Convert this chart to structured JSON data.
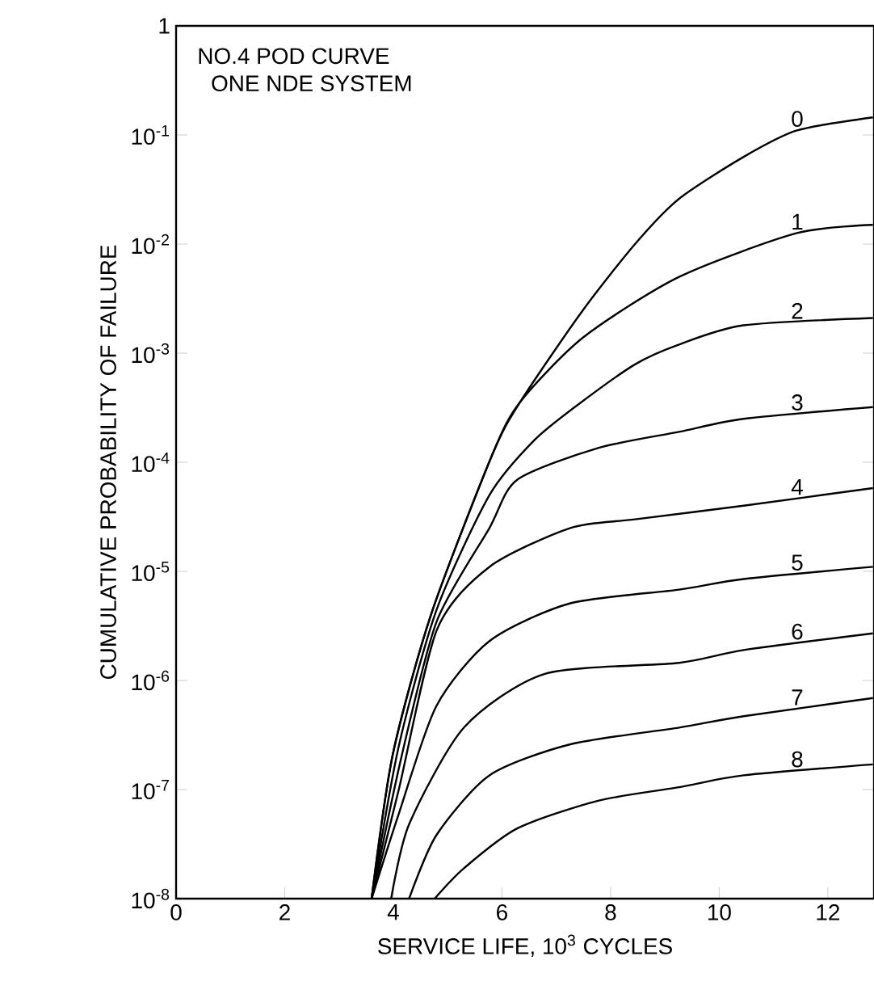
{
  "chart_data": {
    "type": "line",
    "title": "NO.4  POD CURVE",
    "subtitle": "ONE NDE SYSTEM",
    "xlabel": "SERVICE LIFE, 10$^{3}$ CYCLES",
    "ylabel": "CUMULATIVE PROBABILITY OF FAILURE",
    "log": "y",
    "grid": false,
    "marker": "none",
    "line_style": "solid",
    "xlim": [
      0,
      12.85
    ],
    "ylim": [
      1e-08,
      1
    ],
    "xticks": [
      0,
      2,
      4,
      6,
      8,
      10,
      12
    ],
    "yticks": [
      {
        "value": 1e-08,
        "label": "10$^{-8}$"
      },
      {
        "value": 1e-07,
        "label": "10$^{-7}$"
      },
      {
        "value": 1e-06,
        "label": "10$^{-6}$"
      },
      {
        "value": 1e-05,
        "label": "10$^{-5}$"
      },
      {
        "value": 0.0001,
        "label": "10$^{-4}$"
      },
      {
        "value": 0.001,
        "label": "10$^{-3}$"
      },
      {
        "value": 0.01,
        "label": "10$^{-2}$"
      },
      {
        "value": 0.1,
        "label": "10$^{-1}$"
      },
      1
    ],
    "series": [
      {
        "name": "0",
        "color": "#000000",
        "x": [
          3.6,
          3.99,
          4.7,
          5.83,
          6.34,
          7.47,
          8.45,
          9.26,
          10.45,
          11.43,
          12.83
        ],
        "values": [
          1e-08,
          2.1e-07,
          4.1e-06,
          0.00012,
          0.00036,
          0.0024,
          0.01,
          0.026,
          0.063,
          0.11,
          0.145
        ]
      },
      {
        "name": "1",
        "color": "#000000",
        "x": [
          3.6,
          3.99,
          4.7,
          5.83,
          6.34,
          7.5,
          9.26,
          11.43,
          12.83
        ],
        "values": [
          1e-08,
          2.1e-07,
          4.1e-06,
          0.00012,
          0.00036,
          0.0014,
          0.005,
          0.0126,
          0.015
        ]
      },
      {
        "name": "2",
        "color": "#000000",
        "x": [
          3.6,
          4.1,
          4.8,
          5.77,
          6.6,
          7.41,
          8.45,
          9.26,
          10.45,
          12.83
        ],
        "values": [
          1e-08,
          2.5e-07,
          4.5e-06,
          5e-05,
          0.00016,
          0.00034,
          0.00079,
          0.0012,
          0.0018,
          0.0021
        ]
      },
      {
        "name": "3",
        "color": "#000000",
        "x": [
          3.6,
          4.15,
          4.8,
          5.77,
          6.28,
          7.77,
          9.26,
          10.45,
          12.83
        ],
        "values": [
          1e-08,
          2e-07,
          3.5e-06,
          2.5e-05,
          6.9e-05,
          0.000135,
          0.00019,
          0.00025,
          0.00032
        ]
      },
      {
        "name": "4",
        "color": "#000000",
        "x": [
          3.6,
          4.1,
          4.8,
          5.77,
          7.26,
          8.45,
          10.45,
          12.83
        ],
        "values": [
          1e-08,
          1e-07,
          2.9e-06,
          1.1e-05,
          2.5e-05,
          3e-05,
          4e-05,
          5.8e-05
        ]
      },
      {
        "name": "5",
        "color": "#000000",
        "x": [
          3.6,
          4.11,
          4.79,
          5.77,
          7.26,
          9.26,
          10.45,
          12.83
        ],
        "values": [
          1e-08,
          6.2e-08,
          5.8e-07,
          2.3e-06,
          5.1e-06,
          6.8e-06,
          8.5e-06,
          1.1e-05
        ]
      },
      {
        "name": "6",
        "color": "#000000",
        "x": [
          3.96,
          4.29,
          5.3,
          6.79,
          9.26,
          10.45,
          12.83
        ],
        "values": [
          1e-08,
          4.8e-08,
          3.7e-07,
          1.15e-06,
          1.45e-06,
          1.9e-06,
          2.7e-06
        ]
      },
      {
        "name": "7",
        "color": "#000000",
        "x": [
          4.29,
          4.79,
          5.77,
          7.26,
          9.26,
          10.45,
          12.83
        ],
        "values": [
          1e-08,
          3.8e-08,
          1.35e-07,
          2.6e-07,
          3.7e-07,
          4.7e-07,
          6.9e-07
        ]
      },
      {
        "name": "8",
        "color": "#000000",
        "x": [
          4.76,
          5.3,
          6.28,
          7.77,
          9.26,
          10.45,
          12.83
        ],
        "values": [
          1e-08,
          1.9e-08,
          4.4e-08,
          7.9e-08,
          1.05e-07,
          1.35e-07,
          1.7e-07
        ]
      }
    ]
  }
}
